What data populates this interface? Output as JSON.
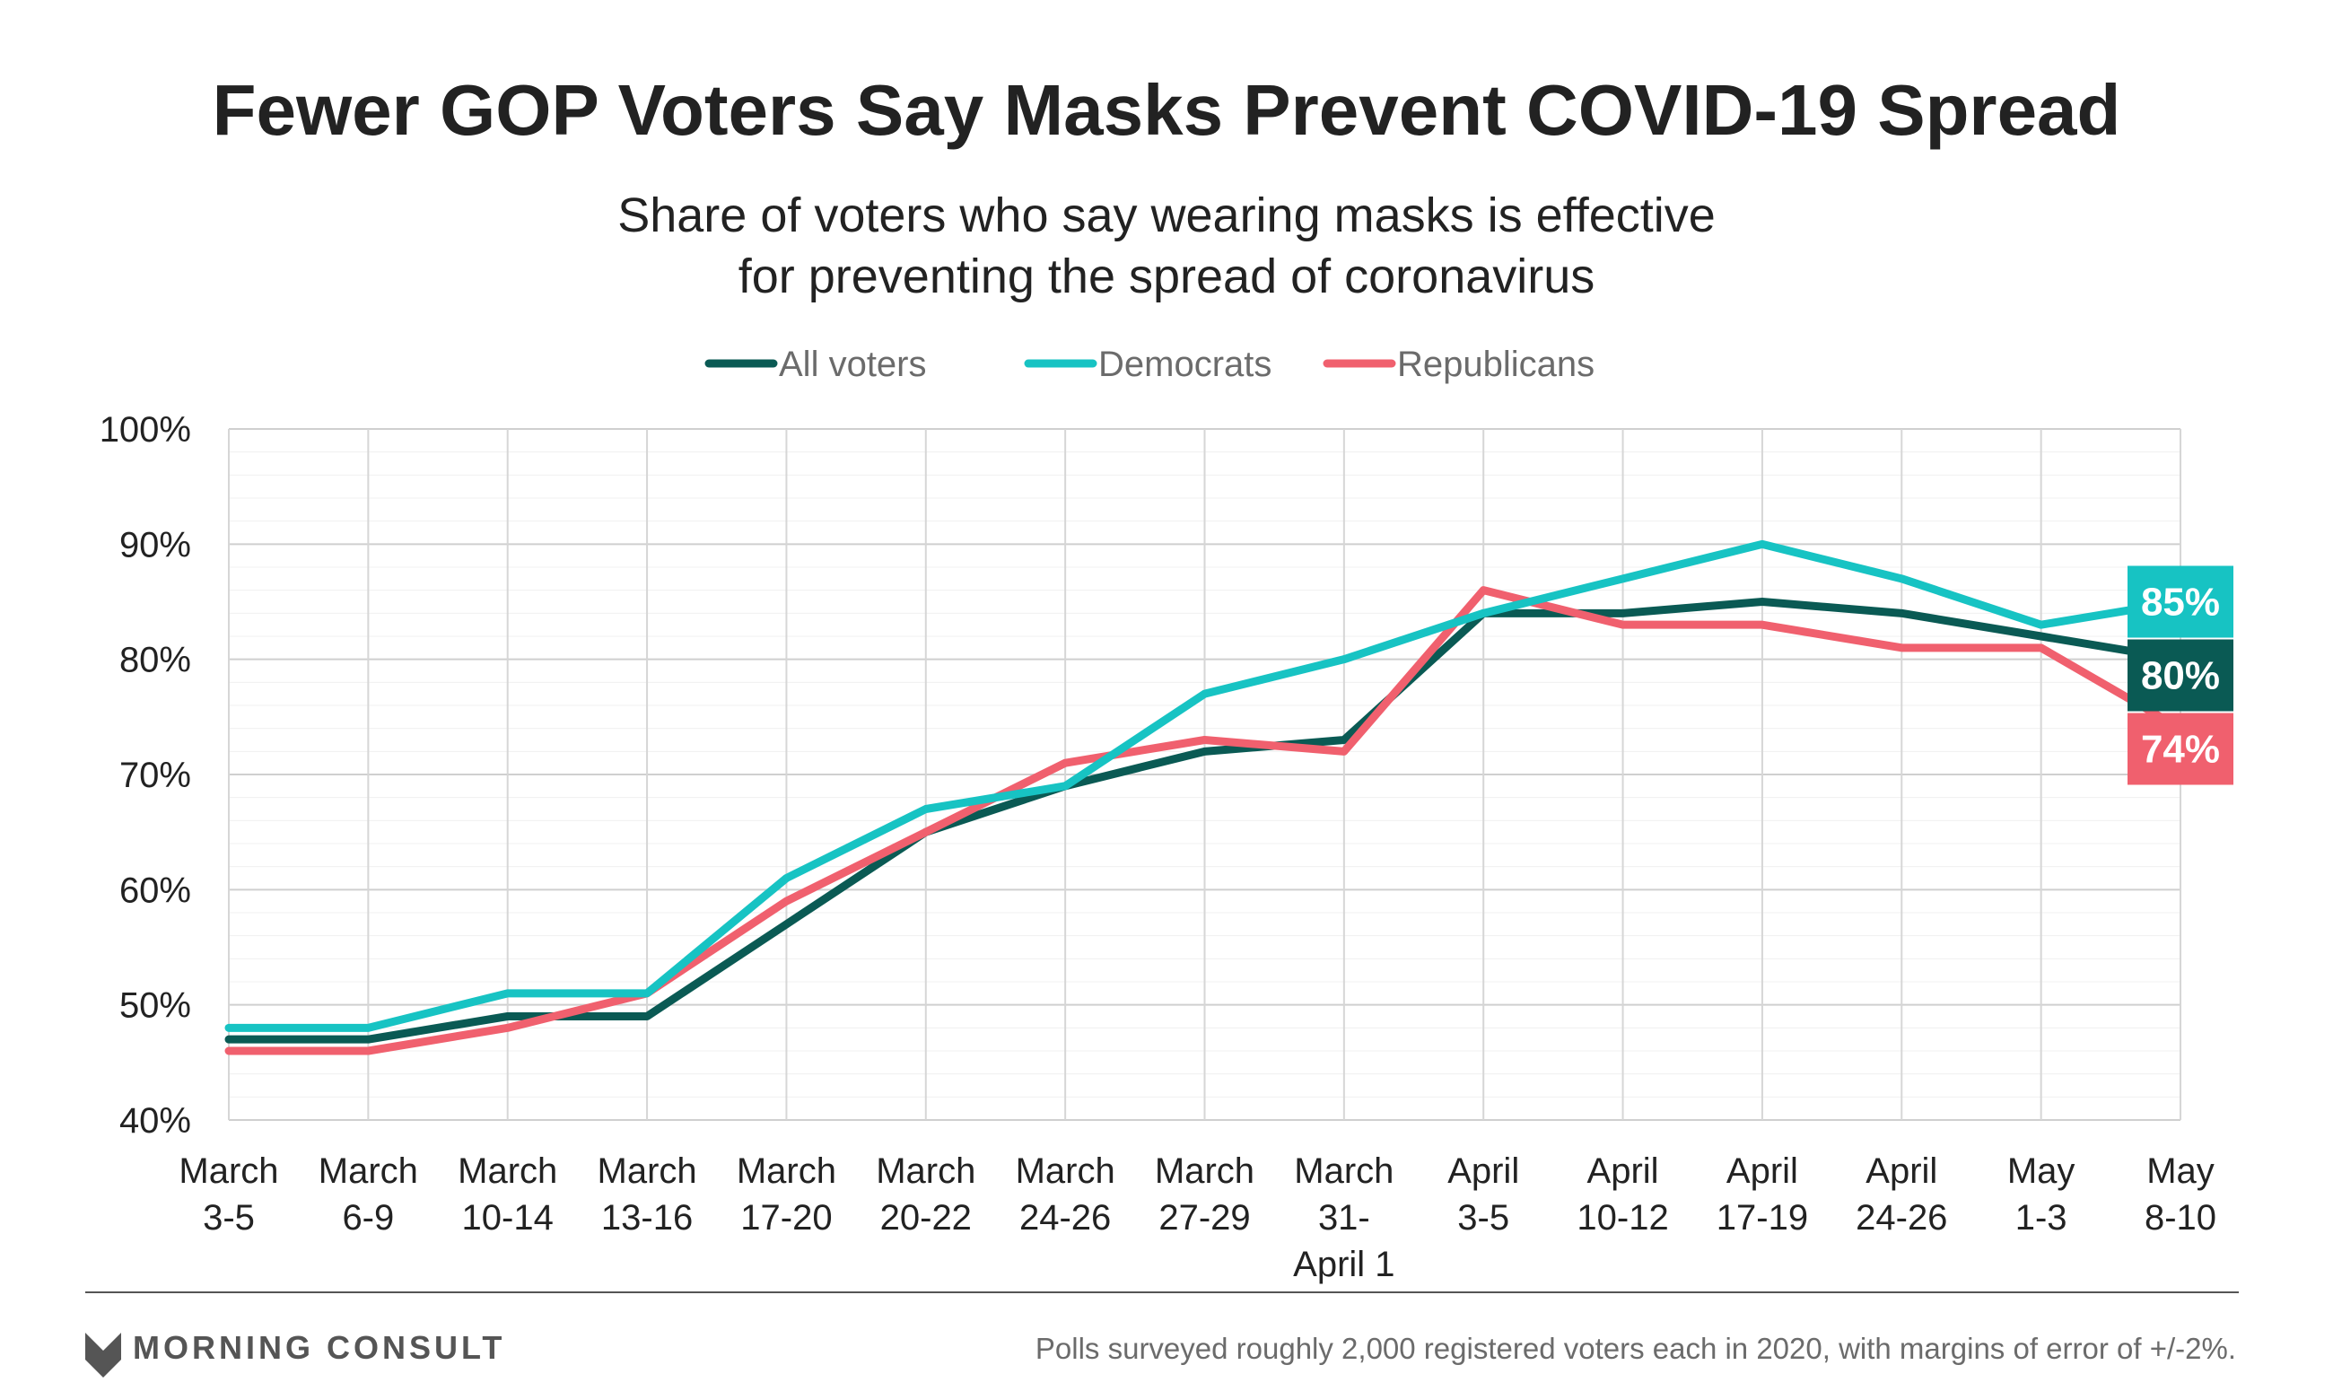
{
  "chart_data": {
    "type": "line",
    "title": "Fewer GOP Voters Say Masks Prevent COVID-19 Spread",
    "subtitle": [
      "Share of voters who say wearing masks is effective",
      "for preventing the spread of coronavirus"
    ],
    "categories": [
      [
        "March",
        "3-5"
      ],
      [
        "March",
        "6-9"
      ],
      [
        "March",
        "10-14"
      ],
      [
        "March",
        "13-16"
      ],
      [
        "March",
        "17-20"
      ],
      [
        "March",
        "20-22"
      ],
      [
        "March",
        "24-26"
      ],
      [
        "March",
        "27-29"
      ],
      [
        "March",
        "31-",
        "April 1"
      ],
      [
        "April",
        "3-5"
      ],
      [
        "April",
        "10-12"
      ],
      [
        "April",
        "17-19"
      ],
      [
        "April",
        "24-26"
      ],
      [
        "May",
        "1-3"
      ],
      [
        "May",
        "8-10"
      ]
    ],
    "y_ticks": [
      "100%",
      "90%",
      "80%",
      "70%",
      "60%",
      "50%",
      "40%"
    ],
    "ylim": [
      40,
      100
    ],
    "grid": true,
    "legend_position": "top-center",
    "series": [
      {
        "name": "All voters",
        "color": "#0a5a54",
        "values": [
          47,
          47,
          49,
          49,
          57,
          65,
          69,
          72,
          73,
          84,
          84,
          85,
          84,
          82,
          80
        ],
        "end_label": "80%"
      },
      {
        "name": "Democrats",
        "color": "#17c3c3",
        "values": [
          48,
          48,
          51,
          51,
          61,
          67,
          69,
          77,
          80,
          84,
          87,
          90,
          87,
          83,
          85
        ],
        "end_label": "85%"
      },
      {
        "name": "Republicans",
        "color": "#f0606e",
        "values": [
          46,
          46,
          48,
          51,
          59,
          65,
          71,
          73,
          72,
          86,
          83,
          83,
          81,
          81,
          74
        ],
        "end_label": "74%"
      }
    ]
  },
  "footer": {
    "brand": "MORNING CONSULT",
    "note": "Polls surveyed roughly 2,000 registered voters each in 2020, with margins of error of +/-2%."
  }
}
